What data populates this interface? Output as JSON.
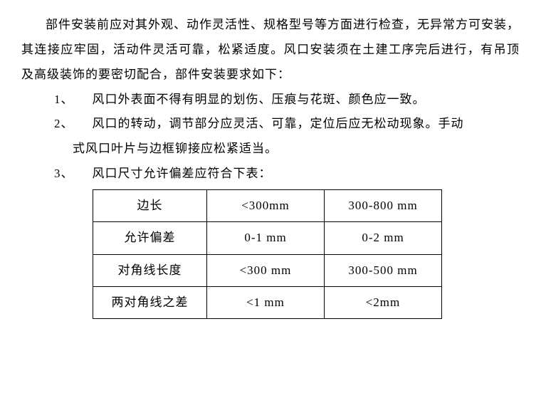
{
  "intro": "部件安装前应对其外观、动作灵活性、规格型号等方面进行检查，无异常方可安装，其连接应牢固，活动件灵活可靠，松紧适度。风口安装须在土建工序完后进行，有吊顶及高级装饰的要密切配合，部件安装要求如下：",
  "items": [
    {
      "num": "1、",
      "text": "风口外表面不得有明显的划伤、压痕与花斑、颜色应一致。"
    },
    {
      "num": "2、",
      "text": "风口的转动，调节部分应灵活、可靠，定位后应无松动现象。手动",
      "continue": "式风口叶片与边框铆接应松紧适当。"
    },
    {
      "num": "3、",
      "text": "风口尺寸允许偏差应符合下表："
    }
  ],
  "table": {
    "rows": [
      [
        "边长",
        "<300mm",
        "300-800 mm"
      ],
      [
        "允许偏差",
        "0-1 mm",
        "0-2 mm"
      ],
      [
        "对角线长度",
        "<300 mm",
        "300-500 mm"
      ],
      [
        "两对角线之差",
        "<1 mm",
        "<2mm"
      ]
    ]
  }
}
